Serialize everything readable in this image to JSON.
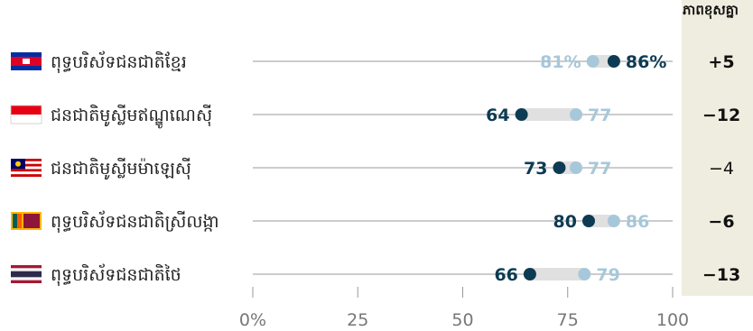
{
  "colors": {
    "dark": "#0d3b53",
    "light": "#a7c8da",
    "connector": "#e0e0e0",
    "column_bg": "#efeddf"
  },
  "chart_data": {
    "type": "dot",
    "title": "",
    "xlabel": "",
    "ylabel": "",
    "xlim": [
      0,
      100
    ],
    "tick_values": [
      0,
      25,
      50,
      75,
      100
    ],
    "tick_labels": [
      "0%",
      "25",
      "50",
      "75",
      "100"
    ],
    "diff_header": "ភាពខុសគ្នា",
    "categories": [
      "ពុទ្ធបរិស័ទជនជាតិខ្មែរ",
      "ជនជាតិមូស្លីមឥណ្ឌូណេស៊ី",
      "ជនជាតិមូស្លីមម៉ាឡេស៊ី",
      "ពុទ្ធបរិស័ទជនជាតិស្រីលង្កា",
      "ពុទ្ធបរិស័ទជនជាតិថៃ"
    ],
    "flags": [
      "cambodia-flag-icon",
      "indonesia-flag-icon",
      "malaysia-flag-icon",
      "srilanka-flag-icon",
      "thailand-flag-icon"
    ],
    "series": [
      {
        "values": [
          86,
          64,
          73,
          80,
          66
        ],
        "labels": [
          "86%",
          "64",
          "73",
          "80",
          "66"
        ]
      },
      {
        "values": [
          81,
          77,
          77,
          86,
          79
        ],
        "labels": [
          "81%",
          "77",
          "77",
          "86",
          "79"
        ]
      }
    ],
    "differences": [
      "+5",
      "−12",
      "−4",
      "−6",
      "−13"
    ],
    "difference_bold": [
      true,
      true,
      false,
      true,
      true
    ]
  }
}
